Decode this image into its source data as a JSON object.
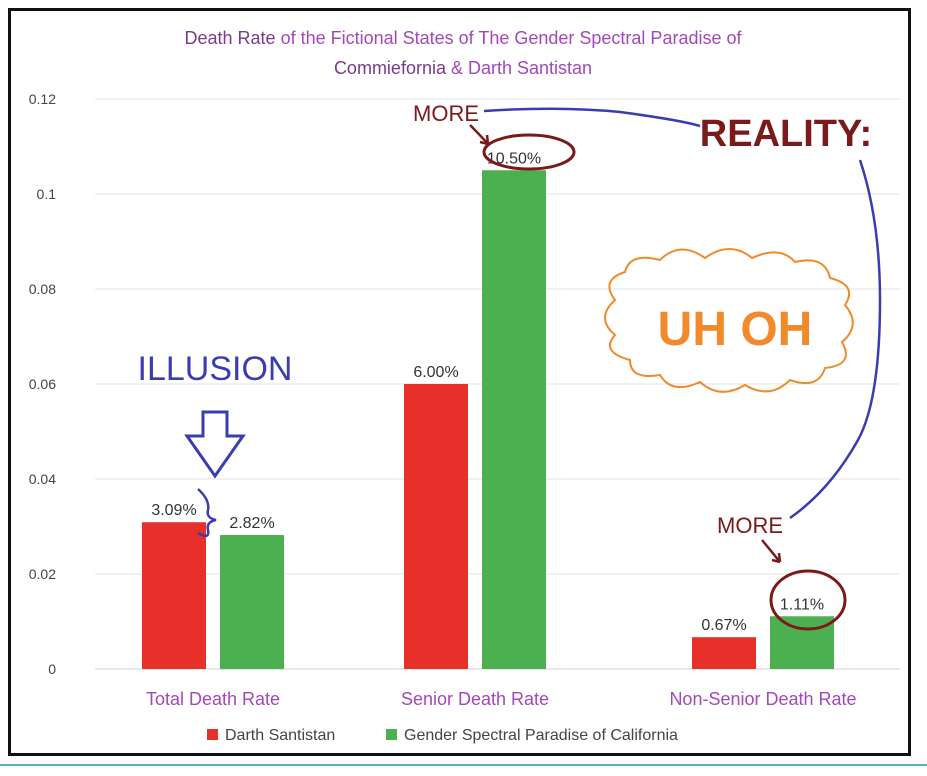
{
  "chart_data": {
    "type": "bar",
    "title_parts": [
      {
        "text": "Death Rate",
        "color": "#7a3a8c"
      },
      {
        "text": " of the Fictional States of The Gender Spectral Paradise of",
        "color": "#a447b8"
      }
    ],
    "title_line2_parts": [
      {
        "text": "Commiefornia",
        "color": "#7a3a8c"
      },
      {
        "text": " & Darth Santistan",
        "color": "#a447b8"
      }
    ],
    "categories": [
      "Total Death Rate",
      "Senior Death Rate",
      "Non-Senior Death Rate"
    ],
    "series": [
      {
        "name": "Darth Santistan",
        "color": "#e8302a",
        "values": [
          0.0309,
          0.06,
          0.0067
        ],
        "labels": [
          "3.09%",
          "6.00%",
          "0.67%"
        ]
      },
      {
        "name": "Gender Spectral Paradise of California",
        "color": "#4caf50",
        "values": [
          0.0282,
          0.105,
          0.0111
        ],
        "labels": [
          "2.82%",
          "10.50%",
          "1.11%"
        ]
      }
    ],
    "y_ticks": [
      "0",
      "0.02",
      "0.04",
      "0.06",
      "0.08",
      "0.1",
      "0.12"
    ],
    "ylim": [
      0,
      0.12
    ],
    "grid": true,
    "legend_position": "bottom"
  },
  "annotations": {
    "illusion": "ILLUSION",
    "more_top": "MORE",
    "reality": "REALITY:",
    "uh_oh": "UH OH",
    "more_bottom": "MORE"
  },
  "colors": {
    "illusion": "#3a3db0",
    "annotation_dark": "#7a1a1a",
    "uh_oh": "#f08a2a",
    "line_blue": "#3a3db0"
  }
}
